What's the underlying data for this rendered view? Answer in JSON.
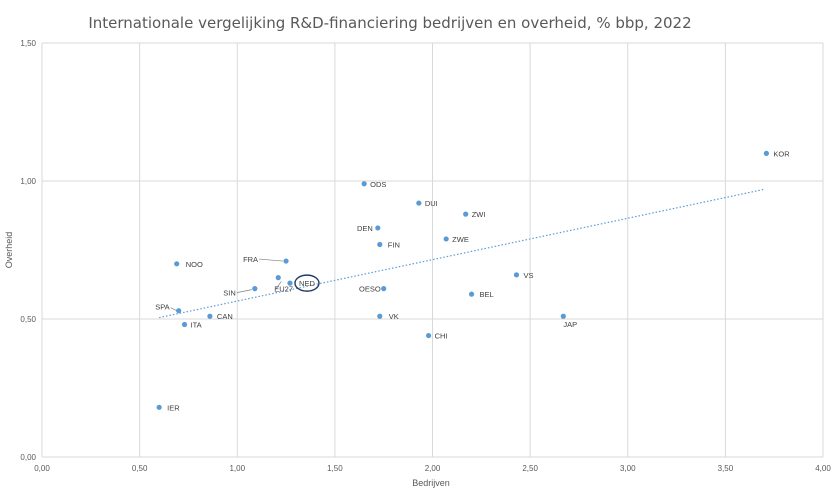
{
  "chart_data": {
    "type": "scatter",
    "title": "Internationale vergelijking R&D-financiering bedrijven en overheid, % bbp, 2022",
    "xlabel": "Bedrijven",
    "ylabel": "Overheid",
    "xlim": [
      0,
      4
    ],
    "ylim": [
      0,
      1.5
    ],
    "xticks": [
      0,
      0.5,
      1,
      1.5,
      2,
      2.5,
      3,
      3.5,
      4
    ],
    "yticks": [
      0,
      0.5,
      1,
      1.5
    ],
    "xtick_labels": [
      "0,00",
      "0,50",
      "1,00",
      "1,50",
      "2,00",
      "2,50",
      "3,00",
      "3,50",
      "4,00"
    ],
    "ytick_labels": [
      "0,00",
      "0,50",
      "1,00",
      "1,50"
    ],
    "grid": true,
    "trendline": {
      "style": "dotted",
      "x": [
        0.6,
        3.7
      ],
      "y": [
        0.505,
        0.97
      ]
    },
    "highlight": "NED",
    "points": [
      {
        "label": "KOR",
        "x": 3.71,
        "y": 1.1
      },
      {
        "label": "ODS",
        "x": 1.65,
        "y": 0.99
      },
      {
        "label": "DUI",
        "x": 1.93,
        "y": 0.92
      },
      {
        "label": "ZWI",
        "x": 2.17,
        "y": 0.88
      },
      {
        "label": "DEN",
        "x": 1.72,
        "y": 0.83
      },
      {
        "label": "ZWE",
        "x": 2.07,
        "y": 0.79
      },
      {
        "label": "FIN",
        "x": 1.73,
        "y": 0.77
      },
      {
        "label": "FRA",
        "x": 1.25,
        "y": 0.71
      },
      {
        "label": "NOO",
        "x": 0.69,
        "y": 0.7
      },
      {
        "label": "VS",
        "x": 2.43,
        "y": 0.66
      },
      {
        "label": "NED",
        "x": 1.27,
        "y": 0.63
      },
      {
        "label": "EU27",
        "x": 1.21,
        "y": 0.65
      },
      {
        "label": "SIN",
        "x": 1.09,
        "y": 0.61
      },
      {
        "label": "OESO",
        "x": 1.75,
        "y": 0.61
      },
      {
        "label": "BEL",
        "x": 2.2,
        "y": 0.59
      },
      {
        "label": "SPA",
        "x": 0.7,
        "y": 0.53
      },
      {
        "label": "CAN",
        "x": 0.86,
        "y": 0.51
      },
      {
        "label": "VK",
        "x": 1.73,
        "y": 0.51
      },
      {
        "label": "JAP",
        "x": 2.67,
        "y": 0.51
      },
      {
        "label": "ITA",
        "x": 0.73,
        "y": 0.48
      },
      {
        "label": "CHI",
        "x": 1.98,
        "y": 0.44
      },
      {
        "label": "IER",
        "x": 0.6,
        "y": 0.18
      }
    ]
  }
}
